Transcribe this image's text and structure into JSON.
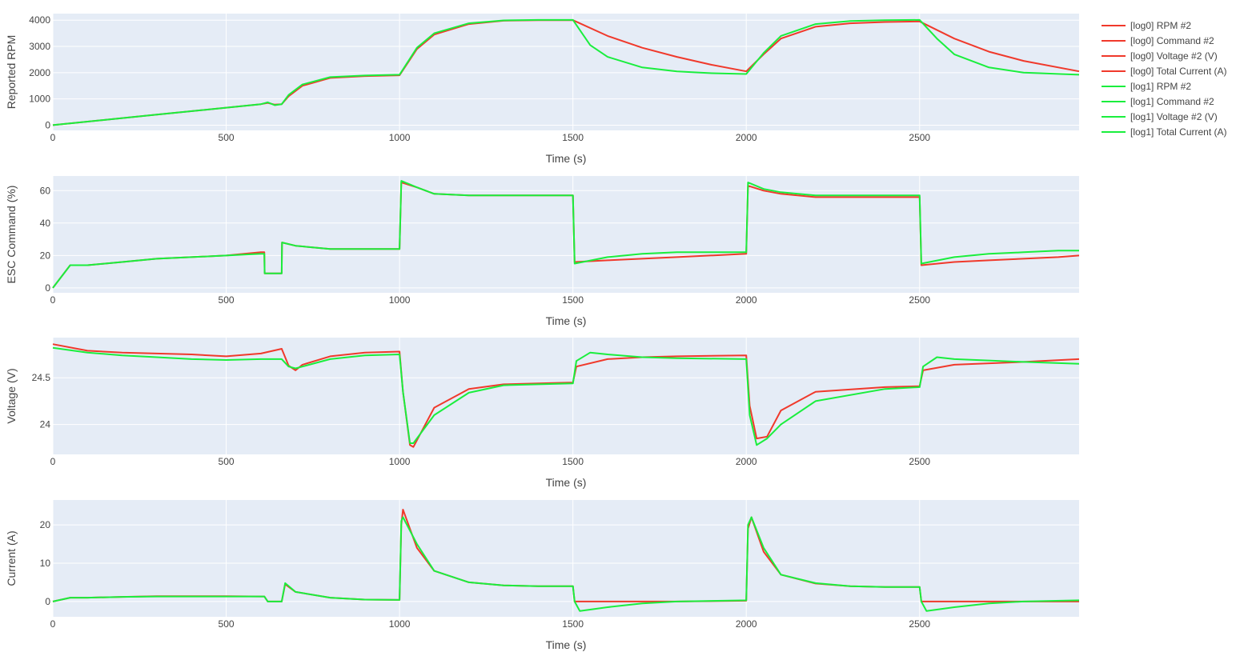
{
  "colors": {
    "log0": "#f0392b",
    "log1": "#1aee3d",
    "plot_bg": "#e5ecf6",
    "grid": "#ffffff"
  },
  "legend": [
    {
      "label": "[log0] RPM #2",
      "color": "#f0392b"
    },
    {
      "label": "[log0] Command #2",
      "color": "#f0392b"
    },
    {
      "label": "[log0] Voltage #2 (V)",
      "color": "#f0392b"
    },
    {
      "label": "[log0] Total Current (A)",
      "color": "#f0392b"
    },
    {
      "label": "[log1] RPM #2",
      "color": "#1aee3d"
    },
    {
      "label": "[log1] Command #2",
      "color": "#1aee3d"
    },
    {
      "label": "[log1] Voltage #2 (V)",
      "color": "#1aee3d"
    },
    {
      "label": "[log1] Total Current (A)",
      "color": "#1aee3d"
    }
  ],
  "chart_data": [
    {
      "type": "line",
      "xlabel": "Time (s)",
      "ylabel": "Reported RPM",
      "xlim": [
        0,
        2960
      ],
      "ylim": [
        -200,
        4250
      ],
      "xticks": [
        0,
        500,
        1000,
        1500,
        2000,
        2500
      ],
      "yticks": [
        0,
        1000,
        2000,
        3000,
        4000
      ],
      "grid": true,
      "series": [
        {
          "name": "[log0] RPM #2",
          "color": "#f0392b",
          "x": [
            0,
            300,
            600,
            620,
            640,
            660,
            680,
            720,
            800,
            900,
            1000,
            1050,
            1100,
            1200,
            1300,
            1400,
            1500,
            1600,
            1700,
            1800,
            1900,
            2000,
            2050,
            2100,
            2200,
            2300,
            2400,
            2500,
            2600,
            2700,
            2800,
            2960
          ],
          "y": [
            0,
            400,
            800,
            850,
            780,
            800,
            1100,
            1500,
            1800,
            1870,
            1900,
            2900,
            3450,
            3850,
            3980,
            4000,
            4000,
            3400,
            2950,
            2600,
            2300,
            2050,
            2700,
            3300,
            3750,
            3880,
            3930,
            3950,
            3300,
            2800,
            2450,
            2050
          ]
        },
        {
          "name": "[log1] RPM #2",
          "color": "#1aee3d",
          "x": [
            0,
            300,
            600,
            620,
            640,
            660,
            680,
            720,
            800,
            900,
            1000,
            1050,
            1100,
            1200,
            1300,
            1400,
            1500,
            1550,
            1600,
            1700,
            1800,
            1900,
            2000,
            2050,
            2100,
            2200,
            2300,
            2400,
            2500,
            2550,
            2600,
            2700,
            2800,
            2960
          ],
          "y": [
            0,
            400,
            800,
            870,
            760,
            800,
            1150,
            1550,
            1830,
            1890,
            1920,
            2950,
            3500,
            3880,
            3990,
            4010,
            4010,
            3050,
            2600,
            2200,
            2050,
            1980,
            1950,
            2750,
            3400,
            3850,
            3970,
            4000,
            4010,
            3300,
            2700,
            2200,
            2000,
            1920
          ]
        }
      ]
    },
    {
      "type": "line",
      "xlabel": "Time (s)",
      "ylabel": "ESC Command (%)",
      "xlim": [
        0,
        2960
      ],
      "ylim": [
        -3,
        69
      ],
      "xticks": [
        0,
        500,
        1000,
        1500,
        2000,
        2500
      ],
      "yticks": [
        0,
        20,
        40,
        60
      ],
      "grid": true,
      "series": [
        {
          "name": "[log0] Command #2",
          "color": "#f0392b",
          "x": [
            0,
            50,
            100,
            200,
            300,
            400,
            500,
            600,
            610,
            611,
            660,
            661,
            700,
            800,
            1000,
            1005,
            1050,
            1100,
            1200,
            1400,
            1500,
            1505,
            1600,
            1700,
            1800,
            2000,
            2005,
            2050,
            2100,
            2200,
            2400,
            2500,
            2505,
            2600,
            2700,
            2800,
            2900,
            2960
          ],
          "y": [
            0,
            14,
            14,
            16,
            18,
            19,
            20,
            22,
            22,
            9,
            9,
            28,
            26,
            24,
            24,
            65,
            62,
            58,
            57,
            57,
            57,
            16,
            17,
            18,
            19,
            21,
            63,
            60,
            58,
            56,
            56,
            56,
            14,
            16,
            17,
            18,
            19,
            20
          ]
        },
        {
          "name": "[log1] Command #2",
          "color": "#1aee3d",
          "x": [
            0,
            50,
            100,
            200,
            300,
            400,
            500,
            600,
            610,
            611,
            660,
            661,
            700,
            800,
            1000,
            1005,
            1050,
            1100,
            1200,
            1400,
            1500,
            1505,
            1600,
            1700,
            1800,
            2000,
            2005,
            2050,
            2100,
            2200,
            2400,
            2500,
            2505,
            2600,
            2700,
            2800,
            2900,
            2960
          ],
          "y": [
            0,
            14,
            14,
            16,
            18,
            19,
            20,
            21,
            21,
            9,
            9,
            28,
            26,
            24,
            24,
            66,
            62,
            58,
            57,
            57,
            57,
            15,
            19,
            21,
            22,
            22,
            65,
            61,
            59,
            57,
            57,
            57,
            15,
            19,
            21,
            22,
            23,
            23
          ]
        }
      ]
    },
    {
      "type": "line",
      "xlabel": "Time (s)",
      "ylabel": "Voltage (V)",
      "xlim": [
        0,
        2960
      ],
      "ylim": [
        23.68,
        24.93
      ],
      "xticks": [
        0,
        500,
        1000,
        1500,
        2000,
        2500
      ],
      "yticks": [
        24,
        24.5
      ],
      "ytick_labels": [
        "24",
        "24.5"
      ],
      "grid": true,
      "series": [
        {
          "name": "[log0] Voltage #2 (V)",
          "color": "#f0392b",
          "x": [
            0,
            100,
            200,
            300,
            400,
            500,
            600,
            660,
            680,
            700,
            720,
            800,
            900,
            1000,
            1010,
            1030,
            1040,
            1100,
            1200,
            1300,
            1400,
            1500,
            1510,
            1600,
            1700,
            1800,
            2000,
            2010,
            2030,
            2060,
            2100,
            2200,
            2400,
            2500,
            2510,
            2600,
            2800,
            2960
          ],
          "y": [
            24.86,
            24.79,
            24.77,
            24.76,
            24.75,
            24.73,
            24.76,
            24.81,
            24.63,
            24.58,
            24.64,
            24.73,
            24.77,
            24.78,
            24.35,
            23.78,
            23.76,
            24.18,
            24.38,
            24.43,
            24.44,
            24.45,
            24.62,
            24.7,
            24.72,
            24.73,
            24.74,
            24.2,
            23.85,
            23.87,
            24.15,
            24.35,
            24.4,
            24.41,
            24.58,
            24.64,
            24.67,
            24.7
          ]
        },
        {
          "name": "[log1] Voltage #2 (V)",
          "color": "#1aee3d",
          "x": [
            0,
            100,
            200,
            300,
            400,
            500,
            600,
            660,
            680,
            700,
            720,
            800,
            900,
            1000,
            1010,
            1030,
            1040,
            1100,
            1200,
            1300,
            1400,
            1500,
            1510,
            1550,
            1600,
            1700,
            1800,
            2000,
            2010,
            2030,
            2060,
            2100,
            2200,
            2400,
            2500,
            2510,
            2550,
            2600,
            2800,
            2960
          ],
          "y": [
            24.82,
            24.77,
            24.74,
            24.72,
            24.7,
            24.69,
            24.7,
            24.7,
            24.62,
            24.6,
            24.62,
            24.7,
            24.74,
            24.75,
            24.35,
            23.8,
            23.8,
            24.1,
            24.34,
            24.42,
            24.43,
            24.44,
            24.68,
            24.77,
            24.75,
            24.72,
            24.71,
            24.7,
            24.1,
            23.78,
            23.85,
            24.0,
            24.25,
            24.38,
            24.4,
            24.62,
            24.72,
            24.7,
            24.67,
            24.65
          ]
        }
      ]
    },
    {
      "type": "line",
      "xlabel": "Time (s)",
      "ylabel": "Current (A)",
      "xlim": [
        0,
        2960
      ],
      "ylim": [
        -4,
        26.5
      ],
      "xticks": [
        0,
        500,
        1000,
        1500,
        2000,
        2500
      ],
      "yticks": [
        0,
        10,
        20
      ],
      "grid": true,
      "series": [
        {
          "name": "[log0] Total Current (A)",
          "color": "#f0392b",
          "x": [
            0,
            50,
            100,
            200,
            300,
            400,
            500,
            600,
            610,
            620,
            660,
            670,
            700,
            800,
            900,
            1000,
            1005,
            1010,
            1050,
            1100,
            1200,
            1300,
            1400,
            1500,
            1505,
            1600,
            1800,
            2000,
            2005,
            2015,
            2050,
            2100,
            2200,
            2300,
            2400,
            2500,
            2505,
            2700,
            2960
          ],
          "y": [
            0,
            1,
            1,
            1.2,
            1.4,
            1.4,
            1.4,
            1.3,
            1.3,
            0,
            0,
            4.5,
            2.5,
            1,
            0.5,
            0.4,
            20,
            24,
            14,
            8,
            5,
            4.2,
            4,
            4,
            0,
            0,
            0,
            0.2,
            19,
            22,
            13,
            7,
            4.7,
            4,
            3.8,
            3.8,
            0,
            0,
            0
          ]
        },
        {
          "name": "[log1] Total Current (A)",
          "color": "#1aee3d",
          "x": [
            0,
            50,
            100,
            200,
            300,
            400,
            500,
            600,
            610,
            620,
            660,
            670,
            700,
            800,
            900,
            1000,
            1005,
            1010,
            1050,
            1100,
            1200,
            1300,
            1400,
            1500,
            1505,
            1520,
            1600,
            1700,
            1800,
            2000,
            2005,
            2015,
            2050,
            2100,
            2200,
            2300,
            2400,
            2500,
            2505,
            2520,
            2600,
            2700,
            2800,
            2960
          ],
          "y": [
            0,
            1,
            1,
            1.2,
            1.3,
            1.3,
            1.3,
            1.3,
            1.3,
            0,
            0,
            4.8,
            2.5,
            1,
            0.5,
            0.4,
            21,
            22,
            15,
            8,
            5,
            4.2,
            4,
            4,
            0,
            -2.5,
            -1.5,
            -0.5,
            0,
            0.3,
            20,
            22,
            14,
            7,
            4.8,
            4,
            3.8,
            3.8,
            0,
            -2.5,
            -1.5,
            -0.5,
            0,
            0.3
          ]
        }
      ]
    }
  ]
}
